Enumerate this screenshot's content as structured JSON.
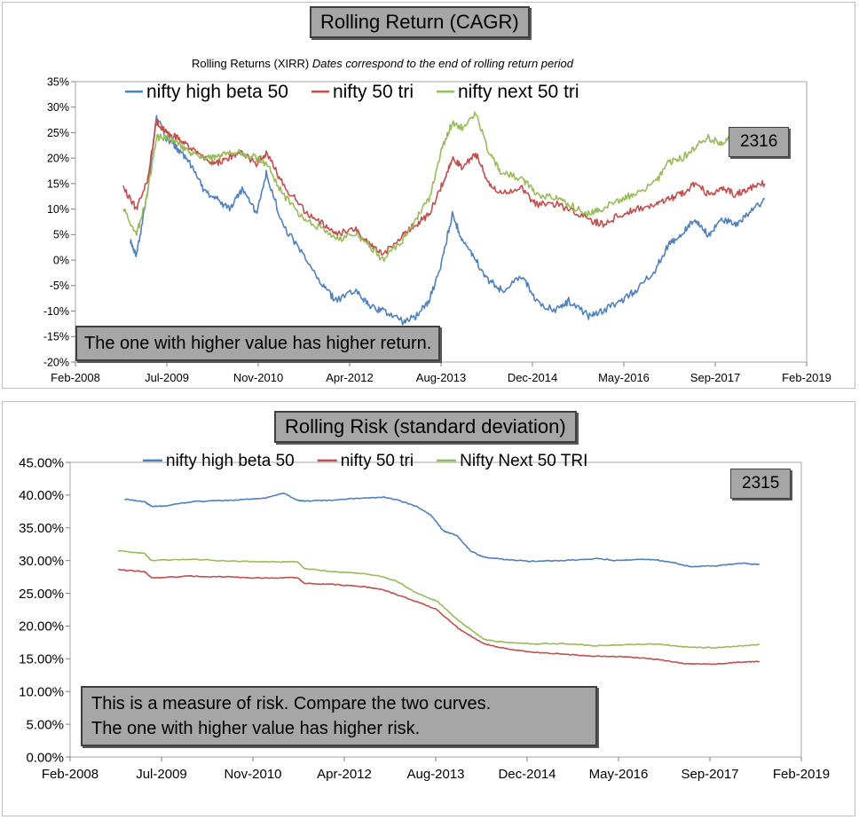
{
  "chart_data": [
    {
      "type": "line",
      "title": "Rolling Return (CAGR)",
      "subtitle": "Rolling Returns (XIRR)",
      "subtitle_note": "Dates correspond to the end of rolling return period",
      "badge": "2316",
      "annotation_lines": [
        "The one with higher value has higher return."
      ],
      "xlabel": "",
      "ylabel": "",
      "x_tick_labels": [
        "Feb-2008",
        "Jul-2009",
        "Nov-2010",
        "Apr-2012",
        "Aug-2013",
        "Dec-2014",
        "May-2016",
        "Sep-2017",
        "Feb-2019"
      ],
      "y_tick_labels": [
        "35%",
        "30%",
        "25%",
        "20%",
        "15%",
        "10%",
        "5%",
        "0%",
        "-5%",
        "-10%",
        "-15%",
        "-20%"
      ],
      "ylim": [
        -20,
        35
      ],
      "xlim": [
        2008.08,
        2019.08
      ],
      "grid": false,
      "legend": "top",
      "series": [
        {
          "name": "nifty high beta 50",
          "color": "#4f81bd",
          "x": [
            2008.9,
            2009.0,
            2009.15,
            2009.3,
            2009.45,
            2009.6,
            2009.8,
            2010.0,
            2010.2,
            2010.4,
            2010.6,
            2010.8,
            2010.95,
            2011.2,
            2011.5,
            2011.8,
            2012.0,
            2012.3,
            2012.5,
            2012.7,
            2013.0,
            2013.2,
            2013.4,
            2013.6,
            2013.75,
            2013.9,
            2014.1,
            2014.3,
            2014.5,
            2014.8,
            2015.0,
            2015.3,
            2015.5,
            2015.8,
            2016.0,
            2016.3,
            2016.5,
            2016.8,
            2017.0,
            2017.2,
            2017.4,
            2017.6,
            2017.8,
            2018.0,
            2018.2,
            2018.45
          ],
          "y": [
            4,
            1,
            12,
            28,
            24,
            22,
            19,
            14,
            12,
            10,
            14,
            9,
            17,
            7,
            1,
            -5,
            -8,
            -6,
            -9,
            -10,
            -12,
            -11,
            -8,
            0,
            9,
            4,
            0,
            -4,
            -6,
            -3,
            -8,
            -10,
            -8,
            -11,
            -10,
            -8,
            -6,
            -2,
            3,
            5,
            8,
            5,
            8,
            7,
            9,
            12
          ]
        },
        {
          "name": "nifty 50 tri",
          "color": "#c0504d",
          "x": [
            2008.8,
            2009.0,
            2009.15,
            2009.3,
            2009.45,
            2009.6,
            2009.8,
            2010.0,
            2010.2,
            2010.4,
            2010.6,
            2010.8,
            2010.95,
            2011.2,
            2011.5,
            2011.8,
            2012.0,
            2012.3,
            2012.5,
            2012.7,
            2013.0,
            2013.2,
            2013.4,
            2013.6,
            2013.75,
            2013.9,
            2014.1,
            2014.3,
            2014.5,
            2014.8,
            2015.0,
            2015.3,
            2015.5,
            2015.8,
            2016.0,
            2016.3,
            2016.5,
            2016.8,
            2017.0,
            2017.2,
            2017.4,
            2017.6,
            2017.8,
            2018.0,
            2018.2,
            2018.45
          ],
          "y": [
            14,
            10,
            15,
            27,
            25,
            24,
            22,
            20,
            19,
            20,
            21,
            19,
            21,
            15,
            10,
            7,
            5,
            6,
            3,
            1,
            5,
            7,
            9,
            15,
            20,
            18,
            21,
            15,
            13,
            14,
            11,
            11,
            10,
            8,
            7,
            9,
            10,
            11,
            12,
            13,
            15,
            13,
            14,
            13,
            14,
            15
          ]
        },
        {
          "name": "nifty next 50 tri",
          "color": "#9bbb59",
          "x": [
            2008.8,
            2009.0,
            2009.15,
            2009.3,
            2009.45,
            2009.6,
            2009.8,
            2010.0,
            2010.2,
            2010.4,
            2010.6,
            2010.8,
            2010.95,
            2011.2,
            2011.5,
            2011.8,
            2012.0,
            2012.3,
            2012.5,
            2012.7,
            2013.0,
            2013.2,
            2013.4,
            2013.6,
            2013.75,
            2013.9,
            2014.1,
            2014.3,
            2014.5,
            2014.8,
            2015.0,
            2015.3,
            2015.5,
            2015.8,
            2016.0,
            2016.3,
            2016.5,
            2016.8,
            2017.0,
            2017.2,
            2017.4,
            2017.6,
            2017.8,
            2018.0,
            2018.2
          ],
          "y": [
            10,
            5,
            12,
            24,
            24,
            23,
            21,
            20,
            20,
            21,
            21,
            20,
            19,
            13,
            8,
            6,
            4,
            5,
            3,
            0,
            4,
            8,
            12,
            22,
            27,
            26,
            29,
            21,
            17,
            16,
            13,
            12,
            11,
            9,
            10,
            12,
            13,
            15,
            19,
            20,
            22,
            24,
            23,
            25,
            22
          ]
        }
      ]
    },
    {
      "type": "line",
      "title": "Rolling Risk (standard deviation)",
      "badge": "2315",
      "annotation_lines": [
        "This is a measure of risk.  Compare the two curves.",
        "The one with higher value has higher risk."
      ],
      "xlabel": "",
      "ylabel": "",
      "x_tick_labels": [
        "Feb-2008",
        "Jul-2009",
        "Nov-2010",
        "Apr-2012",
        "Aug-2013",
        "Dec-2014",
        "May-2016",
        "Sep-2017",
        "Feb-2019"
      ],
      "y_tick_labels": [
        "45.00%",
        "40.00%",
        "35.00%",
        "30.00%",
        "25.00%",
        "20.00%",
        "15.00%",
        "10.00%",
        "5.00%",
        "0.00%"
      ],
      "ylim": [
        0,
        45
      ],
      "xlim": [
        2008.08,
        2019.08
      ],
      "grid": false,
      "legend": "top",
      "series": [
        {
          "name": "nifty high beta 50",
          "color": "#4f81bd",
          "x": [
            2008.9,
            2009.2,
            2009.3,
            2009.5,
            2009.9,
            2010.5,
            2011.0,
            2011.3,
            2011.5,
            2011.6,
            2012.0,
            2012.4,
            2012.8,
            2013.0,
            2013.3,
            2013.5,
            2013.7,
            2013.9,
            2014.1,
            2014.3,
            2014.6,
            2015.0,
            2015.5,
            2016.0,
            2016.3,
            2016.6,
            2016.9,
            2017.1,
            2017.4,
            2017.8,
            2018.2,
            2018.45
          ],
          "y": [
            39.4,
            39.0,
            38.3,
            38.3,
            39.0,
            39.2,
            39.5,
            40.3,
            39.2,
            39.1,
            39.2,
            39.5,
            39.7,
            39.3,
            38.2,
            37.0,
            34.5,
            33.8,
            31.5,
            30.5,
            30.2,
            29.9,
            30.0,
            30.3,
            30.0,
            30.2,
            30.1,
            29.8,
            29.1,
            29.2,
            29.6,
            29.4
          ]
        },
        {
          "name": "nifty 50 tri",
          "color": "#c0504d",
          "x": [
            2008.8,
            2009.2,
            2009.3,
            2009.9,
            2010.5,
            2011.0,
            2011.5,
            2011.6,
            2012.0,
            2012.5,
            2012.8,
            2013.0,
            2013.3,
            2013.6,
            2013.9,
            2014.1,
            2014.3,
            2014.5,
            2015.0,
            2015.5,
            2016.0,
            2016.5,
            2017.0,
            2017.3,
            2017.8,
            2018.2,
            2018.45
          ],
          "y": [
            28.6,
            28.3,
            27.4,
            27.6,
            27.5,
            27.3,
            27.4,
            26.5,
            26.4,
            26.0,
            25.5,
            24.8,
            23.7,
            22.5,
            19.8,
            18.5,
            17.3,
            16.8,
            16.0,
            15.7,
            15.4,
            15.3,
            14.8,
            14.3,
            14.2,
            14.5,
            14.6
          ]
        },
        {
          "name": "Nifty Next 50 TRI",
          "color": "#9bbb59",
          "x": [
            2008.8,
            2009.2,
            2009.3,
            2009.9,
            2010.5,
            2011.0,
            2011.5,
            2011.6,
            2012.0,
            2012.5,
            2012.8,
            2013.0,
            2013.3,
            2013.6,
            2013.9,
            2014.1,
            2014.3,
            2014.5,
            2015.0,
            2015.5,
            2016.0,
            2016.5,
            2017.0,
            2017.3,
            2017.8,
            2018.2,
            2018.45
          ],
          "y": [
            31.5,
            31.1,
            30.0,
            30.2,
            29.9,
            29.8,
            29.8,
            28.8,
            28.3,
            28.0,
            27.5,
            26.8,
            25.0,
            23.8,
            21.0,
            19.5,
            18.0,
            17.6,
            17.3,
            17.3,
            17.0,
            17.2,
            17.2,
            16.8,
            16.7,
            17.0,
            17.2
          ]
        }
      ]
    }
  ]
}
